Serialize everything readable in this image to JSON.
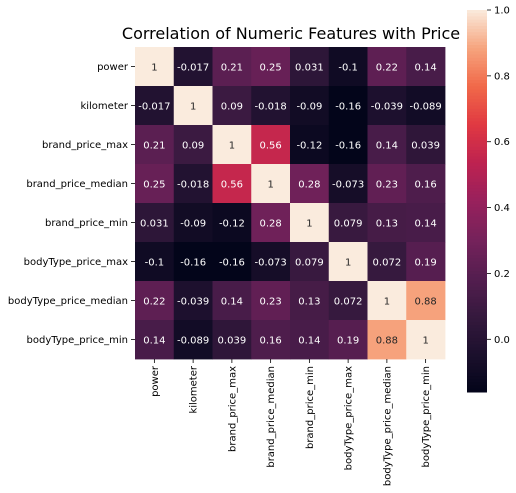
{
  "chart_data": {
    "type": "heatmap",
    "title": "Correlation of Numeric Features with Price",
    "row_labels": [
      "power",
      "kilometer",
      "brand_price_max",
      "brand_price_median",
      "brand_price_min",
      "bodyType_price_max",
      "bodyType_price_median",
      "bodyType_price_min"
    ],
    "col_labels": [
      "power",
      "kilometer",
      "brand_price_max",
      "brand_price_median",
      "brand_price_min",
      "bodyType_price_max",
      "bodyType_price_median",
      "bodyType_price_min"
    ],
    "values": [
      [
        1,
        -0.017,
        0.21,
        0.25,
        0.031,
        -0.1,
        0.22,
        0.14
      ],
      [
        -0.017,
        1,
        0.09,
        -0.018,
        -0.09,
        -0.16,
        -0.039,
        -0.089
      ],
      [
        0.21,
        0.09,
        1,
        0.56,
        -0.12,
        -0.16,
        0.14,
        0.039
      ],
      [
        0.25,
        -0.018,
        0.56,
        1,
        0.28,
        -0.073,
        0.23,
        0.16
      ],
      [
        0.031,
        -0.09,
        -0.12,
        0.28,
        1,
        0.079,
        0.13,
        0.14
      ],
      [
        -0.1,
        -0.16,
        -0.16,
        -0.073,
        0.079,
        1,
        0.072,
        0.19
      ],
      [
        0.22,
        -0.039,
        0.14,
        0.23,
        0.13,
        0.072,
        1,
        0.88
      ],
      [
        0.14,
        -0.089,
        0.039,
        0.16,
        0.14,
        0.19,
        0.88,
        1
      ]
    ],
    "colorbar": {
      "vmin": -0.16,
      "vmax": 1.0,
      "ticks": [
        0.0,
        0.2,
        0.4,
        0.6,
        0.8,
        1.0
      ],
      "tick_labels": [
        "0.0",
        "0.2",
        "0.4",
        "0.6",
        "0.8",
        "1.0"
      ],
      "colormap": "rocket"
    }
  }
}
